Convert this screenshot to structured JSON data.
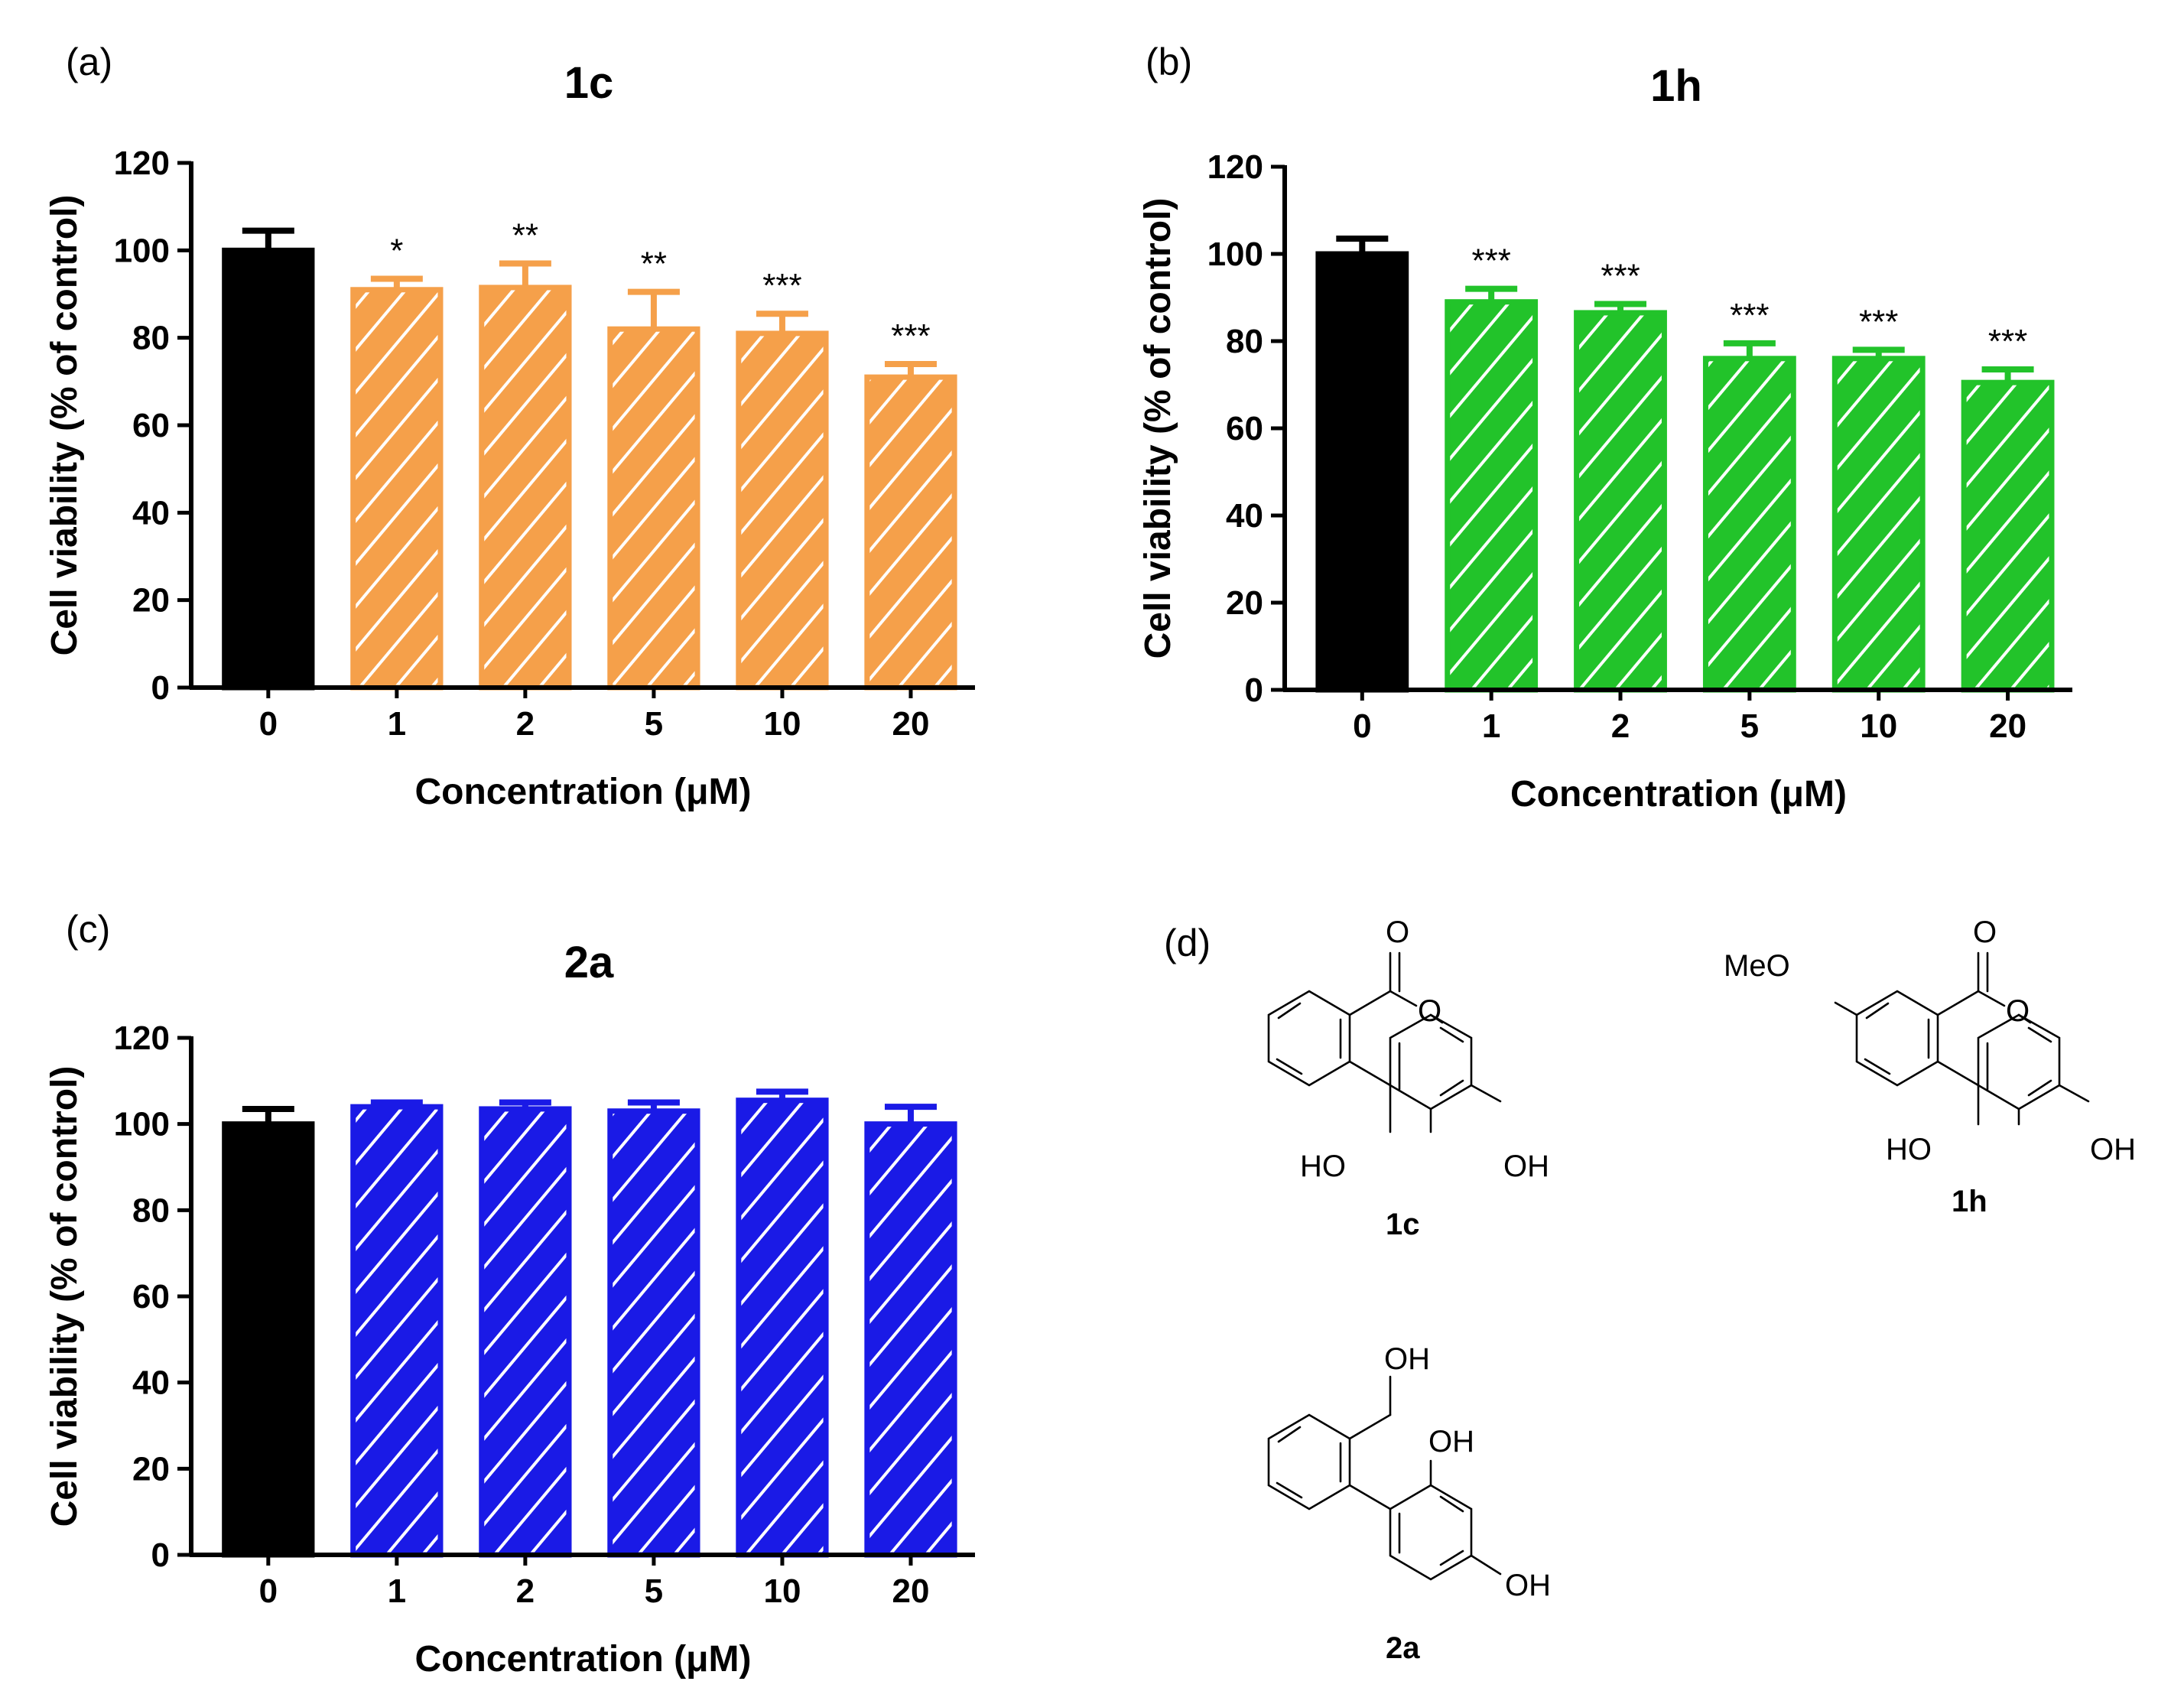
{
  "chart_data": [
    {
      "panel": "(a)",
      "type": "bar",
      "title": "1c",
      "xlabel": "Concentration (μM)",
      "ylabel": "Cell viability (% of control)",
      "ylim": [
        0,
        120
      ],
      "yticks": [
        0,
        20,
        40,
        60,
        80,
        100,
        120
      ],
      "categories": [
        "0",
        "1",
        "2",
        "5",
        "10",
        "20"
      ],
      "values": [
        100,
        91,
        91.5,
        82,
        81,
        71
      ],
      "errors": [
        4.5,
        2.5,
        5.5,
        8.5,
        4.5,
        3
      ],
      "significance": [
        "",
        "*",
        "**",
        "**",
        "***",
        "***"
      ],
      "control_color": "#000000",
      "treatment_color": "#F5A04A",
      "pattern": "diagonal-hatch"
    },
    {
      "panel": "(b)",
      "type": "bar",
      "title": "1h",
      "xlabel": "Concentration (μM)",
      "ylabel": "Cell viability (% of control)",
      "ylim": [
        0,
        120
      ],
      "yticks": [
        0,
        20,
        40,
        60,
        80,
        100,
        120
      ],
      "categories": [
        "0",
        "1",
        "2",
        "5",
        "10",
        "20"
      ],
      "values": [
        100,
        89,
        86.5,
        76,
        76,
        70.5
      ],
      "errors": [
        3.5,
        3,
        2,
        3.5,
        2,
        3
      ],
      "significance": [
        "",
        "***",
        "***",
        "***",
        "***",
        "***"
      ],
      "control_color": "#000000",
      "treatment_color": "#22C32A",
      "pattern": "diagonal-hatch"
    },
    {
      "panel": "(c)",
      "type": "bar",
      "title": "2a",
      "xlabel": "Concentration (μM)",
      "ylabel": "Cell viability (% of control)",
      "ylim": [
        0,
        120
      ],
      "yticks": [
        0,
        20,
        40,
        60,
        80,
        100,
        120
      ],
      "categories": [
        "0",
        "1",
        "2",
        "5",
        "10",
        "20"
      ],
      "values": [
        100,
        104,
        103.5,
        103,
        105.5,
        100
      ],
      "errors": [
        3.5,
        1,
        1.5,
        2,
        2,
        4
      ],
      "significance": [
        "",
        "",
        "",
        "",
        "",
        ""
      ],
      "control_color": "#000000",
      "treatment_color": "#1A1AE6",
      "pattern": "diagonal-hatch"
    }
  ],
  "structures": {
    "panel": "(d)",
    "compounds": [
      {
        "name": "1c",
        "labels": [
          "O",
          "O",
          "HO",
          "OH"
        ]
      },
      {
        "name": "1h",
        "labels": [
          "O",
          "O",
          "MeO",
          "HO",
          "OH"
        ]
      },
      {
        "name": "2a",
        "labels": [
          "OH",
          "OH",
          "OH"
        ]
      }
    ]
  }
}
